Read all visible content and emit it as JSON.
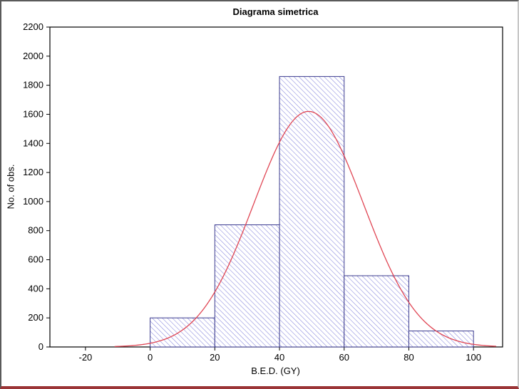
{
  "chart_data": {
    "type": "bar",
    "subtype": "histogram-with-normal-fit",
    "title": "Diagrama simetrica",
    "xlabel": "B.E.D. (GY)",
    "ylabel": "No. of obs.",
    "categories": [
      "0-20",
      "20-40",
      "40-60",
      "60-80",
      "80-100"
    ],
    "values": [
      200,
      840,
      1860,
      490,
      110
    ],
    "bins": [
      {
        "start": 0,
        "end": 20,
        "count": 200
      },
      {
        "start": 20,
        "end": 40,
        "count": 840
      },
      {
        "start": 40,
        "end": 60,
        "count": 1860
      },
      {
        "start": 60,
        "end": 80,
        "count": 490
      },
      {
        "start": 80,
        "end": 100,
        "count": 110
      }
    ],
    "x_ticks": [
      -20,
      0,
      20,
      40,
      60,
      80,
      100
    ],
    "y_ticks": [
      0,
      200,
      400,
      600,
      800,
      1000,
      1200,
      1400,
      1600,
      1800,
      2000,
      2200
    ],
    "xlim": [
      -31,
      109
    ],
    "ylim": [
      0,
      2200
    ],
    "grid": false,
    "legend": false,
    "normal_curve": {
      "mean": 49,
      "sd": 17,
      "peak": 1620,
      "x_range": [
        -11,
        107
      ]
    },
    "colors": {
      "bar_hatch": "#8585dc",
      "bar_border": "#3b3b8f",
      "curve": "#e04654",
      "axis": "#000000",
      "background": "#ffffff"
    }
  }
}
